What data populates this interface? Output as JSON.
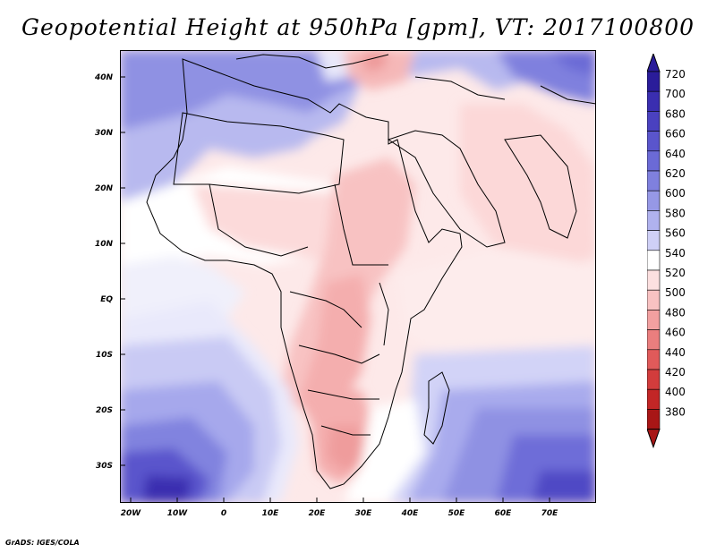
{
  "title": "Geopotential Height at 950hPa [gpm], VT: 2017100800",
  "credit": "GrADS: IGES/COLA",
  "map": {
    "variable": "Geopotential Height",
    "level": "950hPa",
    "units": "gpm",
    "valid_time": "2017100800",
    "lat_ticks": [
      "40N",
      "30N",
      "20N",
      "10N",
      "EQ",
      "10S",
      "20S",
      "30S"
    ],
    "lon_ticks": [
      "20W",
      "10W",
      "0",
      "10E",
      "20E",
      "30E",
      "40E",
      "50E",
      "60E",
      "70E"
    ]
  },
  "colorbar": {
    "labels": [
      "720",
      "700",
      "680",
      "660",
      "640",
      "620",
      "600",
      "580",
      "560",
      "540",
      "520",
      "500",
      "480",
      "460",
      "440",
      "420",
      "400",
      "380"
    ],
    "colors": [
      "#2a1c9a",
      "#3a2eb0",
      "#4a41c0",
      "#5a55cc",
      "#6b6ad6",
      "#7f80de",
      "#9698e6",
      "#b0b2ee",
      "#cfd0f6",
      "#ffffff",
      "#fce0e0",
      "#f8c2c2",
      "#f2a0a0",
      "#ea7e7e",
      "#e05a5a",
      "#d23c3c",
      "#c22626",
      "#a81616"
    ]
  }
}
